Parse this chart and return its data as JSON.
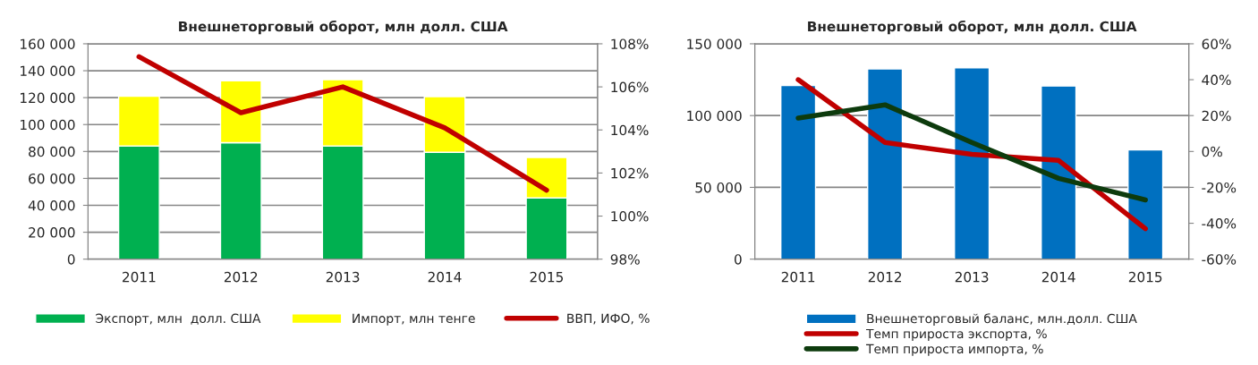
{
  "chart_data": [
    {
      "type": "bar",
      "title": "Внешнеторговый оборот, млн долл. США",
      "categories": [
        "2011",
        "2012",
        "2013",
        "2014",
        "2015"
      ],
      "stacked": true,
      "grid": "y",
      "legend": "bottom",
      "series": [
        {
          "name": "Экспорт, млн  долл. США",
          "color": "#00b050",
          "values": [
            84100,
            86500,
            84100,
            79400,
            45500
          ]
        },
        {
          "name": "Импорт, млн тенге",
          "color": "#ffff00",
          "values": [
            36900,
            46000,
            49300,
            41300,
            30100
          ]
        },
        {
          "name": "ВВП, ИФО, %",
          "type": "line",
          "axis": "y2",
          "color": "#c00000",
          "values": [
            107.4,
            104.8,
            106.0,
            104.1,
            101.2
          ]
        }
      ],
      "ylim": [
        0,
        160000
      ],
      "yticks": [
        0,
        {
          "value": 20000,
          "label": "20 000"
        },
        {
          "value": 40000,
          "label": "40 000"
        },
        {
          "value": 60000,
          "label": "60 000"
        },
        {
          "value": 80000,
          "label": "80 000"
        },
        {
          "value": 100000,
          "label": "100 000"
        },
        {
          "value": 120000,
          "label": "120 000"
        },
        {
          "value": 140000,
          "label": "140 000"
        },
        {
          "value": 160000,
          "label": "160 000"
        }
      ],
      "y2lim": [
        98,
        108
      ],
      "y2ticks": [
        {
          "value": 98,
          "label": "98%"
        },
        {
          "value": 100,
          "label": "100%"
        },
        {
          "value": 102,
          "label": "102%"
        },
        {
          "value": 104,
          "label": "104%"
        },
        {
          "value": 106,
          "label": "106%"
        },
        {
          "value": 108,
          "label": "108%"
        }
      ]
    },
    {
      "type": "bar",
      "title": "Внешнеторговый оборот, млн долл. США",
      "categories": [
        "2011",
        "2012",
        "2013",
        "2014",
        "2015"
      ],
      "grid": "y",
      "legend": "bottom",
      "series": [
        {
          "name": "Внешнеторговый баланс, млн.долл. США",
          "color": "#0070c0",
          "values": [
            120900,
            132500,
            133300,
            120600,
            76100
          ]
        },
        {
          "name": "Темп прироста экспорта, %",
          "type": "line",
          "axis": "y2",
          "color": "#c00000",
          "values": [
            40,
            5,
            -1.6,
            -5,
            -43
          ]
        },
        {
          "name": "Темп прироста импорта, %",
          "type": "line",
          "axis": "y2",
          "color": "#0d3b0d",
          "values": [
            18.6,
            26,
            5,
            -15,
            -27
          ]
        }
      ],
      "ylim": [
        0,
        150000
      ],
      "yticks": [
        0,
        {
          "value": 50000,
          "label": "50 000"
        },
        {
          "value": 100000,
          "label": "100 000"
        },
        {
          "value": 150000,
          "label": "150 000"
        }
      ],
      "y2lim": [
        -60,
        60
      ],
      "y2ticks": [
        {
          "value": -60,
          "label": "-60%"
        },
        {
          "value": -40,
          "label": "-40%"
        },
        {
          "value": -20,
          "label": "-20%"
        },
        {
          "value": 0,
          "label": "0%"
        },
        {
          "value": 20,
          "label": "20%"
        },
        {
          "value": 40,
          "label": "40%"
        },
        {
          "value": 60,
          "label": "60%"
        }
      ]
    }
  ]
}
